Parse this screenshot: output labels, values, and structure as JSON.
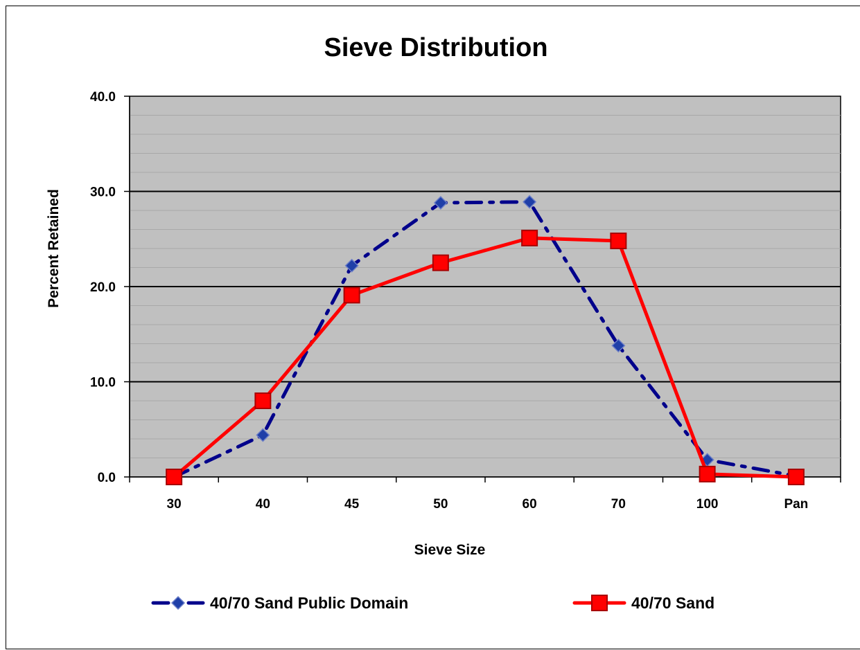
{
  "chart_data": {
    "type": "line",
    "title": "Sieve Distribution",
    "xlabel": "Sieve Size",
    "ylabel": "Percent Retained",
    "categories": [
      "30",
      "40",
      "45",
      "50",
      "60",
      "70",
      "100",
      "Pan"
    ],
    "y_ticks": [
      "0.0",
      "10.0",
      "20.0",
      "30.0",
      "40.0"
    ],
    "ylim": [
      0,
      40
    ],
    "grid": true,
    "legend_position": "bottom",
    "series": [
      {
        "name": "40/70 Sand Public Domain",
        "values": [
          0.0,
          4.4,
          22.2,
          28.8,
          28.9,
          13.8,
          1.8,
          0.1
        ],
        "color": "#00008B",
        "line_style": "dash-dot",
        "marker": "diamond",
        "marker_color": "#1F3FA8"
      },
      {
        "name": "40/70 Sand",
        "values": [
          0.0,
          8.0,
          19.1,
          22.5,
          25.1,
          24.8,
          0.3,
          0.0
        ],
        "color": "#FF0000",
        "line_style": "solid",
        "marker": "square",
        "marker_color": "#FF0000"
      }
    ],
    "plot_background": "#C0C0C0"
  }
}
